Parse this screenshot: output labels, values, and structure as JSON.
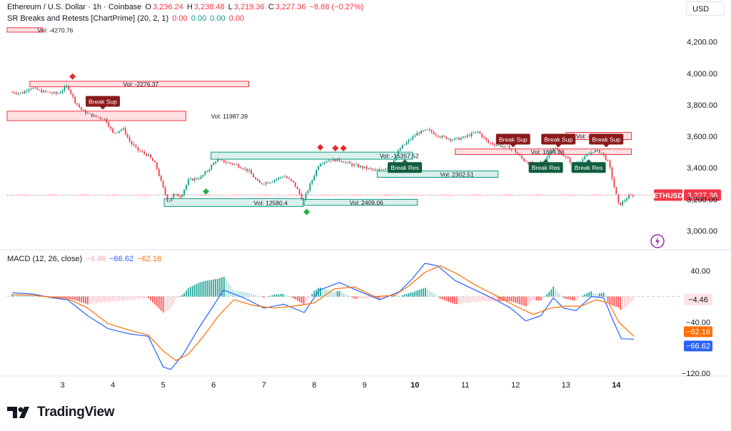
{
  "header": {
    "symbol": "Ethereum / U.S. Dollar · 1h · Coinbase",
    "o_label": "O",
    "o_value": "3,236.24",
    "h_label": "H",
    "h_value": "3,238.48",
    "l_label": "L",
    "l_value": "3,219.36",
    "c_label": "C",
    "c_value": "3,227.36",
    "change": "−8.88 (−0.27%)",
    "indicator_name": "SR Breaks and Retests [ChartPrime] (20, 2, 1)",
    "indicator_values": [
      "0.00",
      "0.00",
      "0.00",
      "0.00"
    ]
  },
  "currency_button": "USD",
  "macd_header": {
    "name": "MACD (12, 26, close)",
    "values": [
      "−4.46",
      "−66.62",
      "−62.16"
    ]
  },
  "price_axis": {
    "ticks": [
      {
        "v": 4200,
        "label": "4,200.00"
      },
      {
        "v": 4000,
        "label": "4,000.00"
      },
      {
        "v": 3800,
        "label": "3,800.00"
      },
      {
        "v": 3600,
        "label": "3,600.00"
      },
      {
        "v": 3400,
        "label": "3,400.00"
      },
      {
        "v": 3200,
        "label": "3,200.00"
      },
      {
        "v": 3000,
        "label": "3,000.00"
      }
    ],
    "range": [
      2880,
      4330
    ],
    "last_price_label": "3,227.36",
    "last_price": 3227.36,
    "symbol_tag": "ETHUSD"
  },
  "macd_axis": {
    "ticks": [
      {
        "v": 40,
        "label": "40.00"
      },
      {
        "v": -40,
        "label": "−40.00"
      },
      {
        "v": -120,
        "label": "−120.00"
      }
    ],
    "range": [
      -122,
      62
    ],
    "hist_badge": {
      "v": -4.46,
      "label": "−4.46"
    },
    "signal_badge": {
      "v": -62.16,
      "label": "−62.16"
    },
    "macd_badge": {
      "v": -66.62,
      "label": "−66.62"
    }
  },
  "time_axis": {
    "ticks": [
      {
        "day": 3,
        "label": "3"
      },
      {
        "day": 4,
        "label": "4"
      },
      {
        "day": 5,
        "label": "5"
      },
      {
        "day": 6,
        "label": "6"
      },
      {
        "day": 7,
        "label": "7"
      },
      {
        "day": 8,
        "label": "8"
      },
      {
        "day": 9,
        "label": "9"
      },
      {
        "day": 10,
        "label": "10"
      },
      {
        "day": 11,
        "label": "11"
      },
      {
        "day": 12,
        "label": "12"
      },
      {
        "day": 13,
        "label": "13"
      },
      {
        "day": 14,
        "label": "14"
      }
    ],
    "range": [
      1.9,
      15.3
    ]
  },
  "chart_data": {
    "type": "candlestick",
    "price_path": [
      [
        2.0,
        3880
      ],
      [
        2.2,
        3875
      ],
      [
        2.35,
        3910
      ],
      [
        2.6,
        3885
      ],
      [
        2.9,
        3870
      ],
      [
        3.1,
        3920
      ],
      [
        3.25,
        3820
      ],
      [
        3.4,
        3760
      ],
      [
        3.6,
        3730
      ],
      [
        3.85,
        3710
      ],
      [
        4.0,
        3620
      ],
      [
        4.2,
        3650
      ],
      [
        4.35,
        3560
      ],
      [
        4.5,
        3510
      ],
      [
        4.7,
        3480
      ],
      [
        4.85,
        3420
      ],
      [
        5.0,
        3270
      ],
      [
        5.1,
        3180
      ],
      [
        5.2,
        3230
      ],
      [
        5.35,
        3220
      ],
      [
        5.5,
        3320
      ],
      [
        5.75,
        3340
      ],
      [
        5.9,
        3390
      ],
      [
        6.05,
        3450
      ],
      [
        6.2,
        3440
      ],
      [
        6.45,
        3420
      ],
      [
        6.7,
        3380
      ],
      [
        6.9,
        3300
      ],
      [
        7.1,
        3310
      ],
      [
        7.4,
        3350
      ],
      [
        7.6,
        3300
      ],
      [
        7.78,
        3190
      ],
      [
        7.9,
        3280
      ],
      [
        8.1,
        3430
      ],
      [
        8.3,
        3450
      ],
      [
        8.5,
        3450
      ],
      [
        8.75,
        3420
      ],
      [
        9.0,
        3400
      ],
      [
        9.25,
        3380
      ],
      [
        9.5,
        3410
      ],
      [
        9.7,
        3520
      ],
      [
        9.9,
        3580
      ],
      [
        10.05,
        3620
      ],
      [
        10.25,
        3640
      ],
      [
        10.5,
        3600
      ],
      [
        10.75,
        3580
      ],
      [
        10.95,
        3590
      ],
      [
        11.25,
        3630
      ],
      [
        11.45,
        3560
      ],
      [
        11.7,
        3540
      ],
      [
        11.95,
        3520
      ],
      [
        12.15,
        3450
      ],
      [
        12.35,
        3420
      ],
      [
        12.55,
        3440
      ],
      [
        12.75,
        3530
      ],
      [
        12.95,
        3480
      ],
      [
        13.15,
        3420
      ],
      [
        13.35,
        3460
      ],
      [
        13.55,
        3510
      ],
      [
        13.7,
        3500
      ],
      [
        13.85,
        3430
      ],
      [
        13.95,
        3290
      ],
      [
        14.05,
        3160
      ],
      [
        14.25,
        3220
      ],
      [
        14.35,
        3227
      ]
    ],
    "macd_line": [
      [
        2.0,
        6
      ],
      [
        2.4,
        4
      ],
      [
        2.8,
        -2
      ],
      [
        3.1,
        -5
      ],
      [
        3.5,
        -30
      ],
      [
        3.9,
        -50
      ],
      [
        4.3,
        -58
      ],
      [
        4.7,
        -62
      ],
      [
        5.0,
        -110
      ],
      [
        5.15,
        -114
      ],
      [
        5.4,
        -90
      ],
      [
        5.7,
        -50
      ],
      [
        5.95,
        -20
      ],
      [
        6.2,
        10
      ],
      [
        6.6,
        -2
      ],
      [
        7.0,
        -18
      ],
      [
        7.4,
        -12
      ],
      [
        7.8,
        -25
      ],
      [
        8.1,
        10
      ],
      [
        8.5,
        22
      ],
      [
        8.9,
        8
      ],
      [
        9.3,
        -5
      ],
      [
        9.7,
        8
      ],
      [
        9.95,
        28
      ],
      [
        10.2,
        52
      ],
      [
        10.45,
        48
      ],
      [
        10.8,
        25
      ],
      [
        11.2,
        10
      ],
      [
        11.6,
        -5
      ],
      [
        11.9,
        -18
      ],
      [
        12.2,
        -38
      ],
      [
        12.5,
        -30
      ],
      [
        12.75,
        -2
      ],
      [
        12.95,
        -18
      ],
      [
        13.2,
        -22
      ],
      [
        13.5,
        0
      ],
      [
        13.75,
        -2
      ],
      [
        13.95,
        -40
      ],
      [
        14.1,
        -66
      ],
      [
        14.35,
        -66.62
      ]
    ],
    "signal_line": [
      [
        2.0,
        3
      ],
      [
        2.4,
        2
      ],
      [
        2.8,
        -1
      ],
      [
        3.1,
        -3
      ],
      [
        3.5,
        -18
      ],
      [
        3.9,
        -42
      ],
      [
        4.3,
        -52
      ],
      [
        4.7,
        -60
      ],
      [
        5.0,
        -85
      ],
      [
        5.25,
        -100
      ],
      [
        5.5,
        -90
      ],
      [
        5.8,
        -62
      ],
      [
        6.1,
        -30
      ],
      [
        6.4,
        -5
      ],
      [
        6.8,
        -14
      ],
      [
        7.2,
        -18
      ],
      [
        7.6,
        -15
      ],
      [
        8.0,
        -10
      ],
      [
        8.4,
        12
      ],
      [
        8.8,
        15
      ],
      [
        9.2,
        0
      ],
      [
        9.6,
        2
      ],
      [
        9.9,
        18
      ],
      [
        10.2,
        38
      ],
      [
        10.5,
        48
      ],
      [
        10.85,
        35
      ],
      [
        11.2,
        18
      ],
      [
        11.6,
        2
      ],
      [
        12.0,
        -15
      ],
      [
        12.35,
        -28
      ],
      [
        12.7,
        -18
      ],
      [
        13.0,
        -15
      ],
      [
        13.3,
        -15
      ],
      [
        13.6,
        -5
      ],
      [
        13.85,
        -10
      ],
      [
        14.05,
        -40
      ],
      [
        14.35,
        -62.16
      ]
    ],
    "sr_zones": [
      {
        "x0": 1.9,
        "x1": 2.6,
        "y0": 4262,
        "y1": 4290,
        "kind": "res",
        "label": "Vol: -4270.76",
        "label_day": 2.5
      },
      {
        "x0": 2.35,
        "x1": 6.7,
        "y0": 3915,
        "y1": 3950,
        "kind": "res",
        "label": "Vol: -2276.37",
        "label_day": 4.2
      },
      {
        "x0": 1.9,
        "x1": 5.45,
        "y0": 3700,
        "y1": 3760,
        "kind": "res",
        "label": "Vol: 11987.39",
        "label_day": 5.95
      },
      {
        "x0": 5.95,
        "x1": 9.95,
        "y0": 3455,
        "y1": 3500,
        "kind": "sup",
        "label": "Vol: -15357.52",
        "label_day": 9.3
      },
      {
        "x0": 9.25,
        "x1": 11.65,
        "y0": 3340,
        "y1": 3380,
        "kind": "sup",
        "label": "Vol: 2302.51",
        "label_day": 10.5
      },
      {
        "x0": 5.02,
        "x1": 7.78,
        "y0": 3155,
        "y1": 3205,
        "kind": "sup",
        "label": "Vol: 12580.4",
        "label_day": 6.8
      },
      {
        "x0": 7.8,
        "x1": 10.05,
        "y0": 3162,
        "y1": 3200,
        "kind": "sup",
        "label": "Vol: 2409.06",
        "label_day": 8.7
      },
      {
        "x0": 10.8,
        "x1": 14.3,
        "y0": 3485,
        "y1": 3520,
        "kind": "res",
        "label": "Vol: 1694.06",
        "label_day": 12.3
      },
      {
        "x0": 13.0,
        "x1": 14.3,
        "y0": 3580,
        "y1": 3625,
        "kind": "res",
        "label": "Vol: -",
        "label_day": 13.2
      }
    ],
    "signals": [
      {
        "text": "Break Sup",
        "day": 3.8,
        "price": 3820,
        "kind": "sup"
      },
      {
        "text": "Break Res",
        "day": 9.8,
        "price": 3400,
        "kind": "res"
      },
      {
        "text": "Break Sup",
        "day": 11.95,
        "price": 3580,
        "kind": "sup"
      },
      {
        "text": "Break Sup",
        "day": 12.85,
        "price": 3580,
        "kind": "sup"
      },
      {
        "text": "Break Res",
        "day": 12.6,
        "price": 3400,
        "kind": "res"
      },
      {
        "text": "Break Res",
        "day": 13.45,
        "price": 3400,
        "kind": "res"
      },
      {
        "text": "Break Sup",
        "day": 13.8,
        "price": 3580,
        "kind": "sup"
      }
    ],
    "diamonds": [
      {
        "day": 3.2,
        "price": 3980,
        "kind": "red"
      },
      {
        "day": 8.12,
        "price": 3530,
        "kind": "red"
      },
      {
        "day": 8.42,
        "price": 3525,
        "kind": "red"
      },
      {
        "day": 8.58,
        "price": 3525,
        "kind": "red"
      },
      {
        "day": 5.85,
        "price": 3250,
        "kind": "green"
      },
      {
        "day": 7.85,
        "price": 3120,
        "kind": "green"
      }
    ],
    "colors": {
      "up": "#089981",
      "down": "#f23645",
      "macd": "#2962ff",
      "signal": "#ff6d00"
    }
  }
}
